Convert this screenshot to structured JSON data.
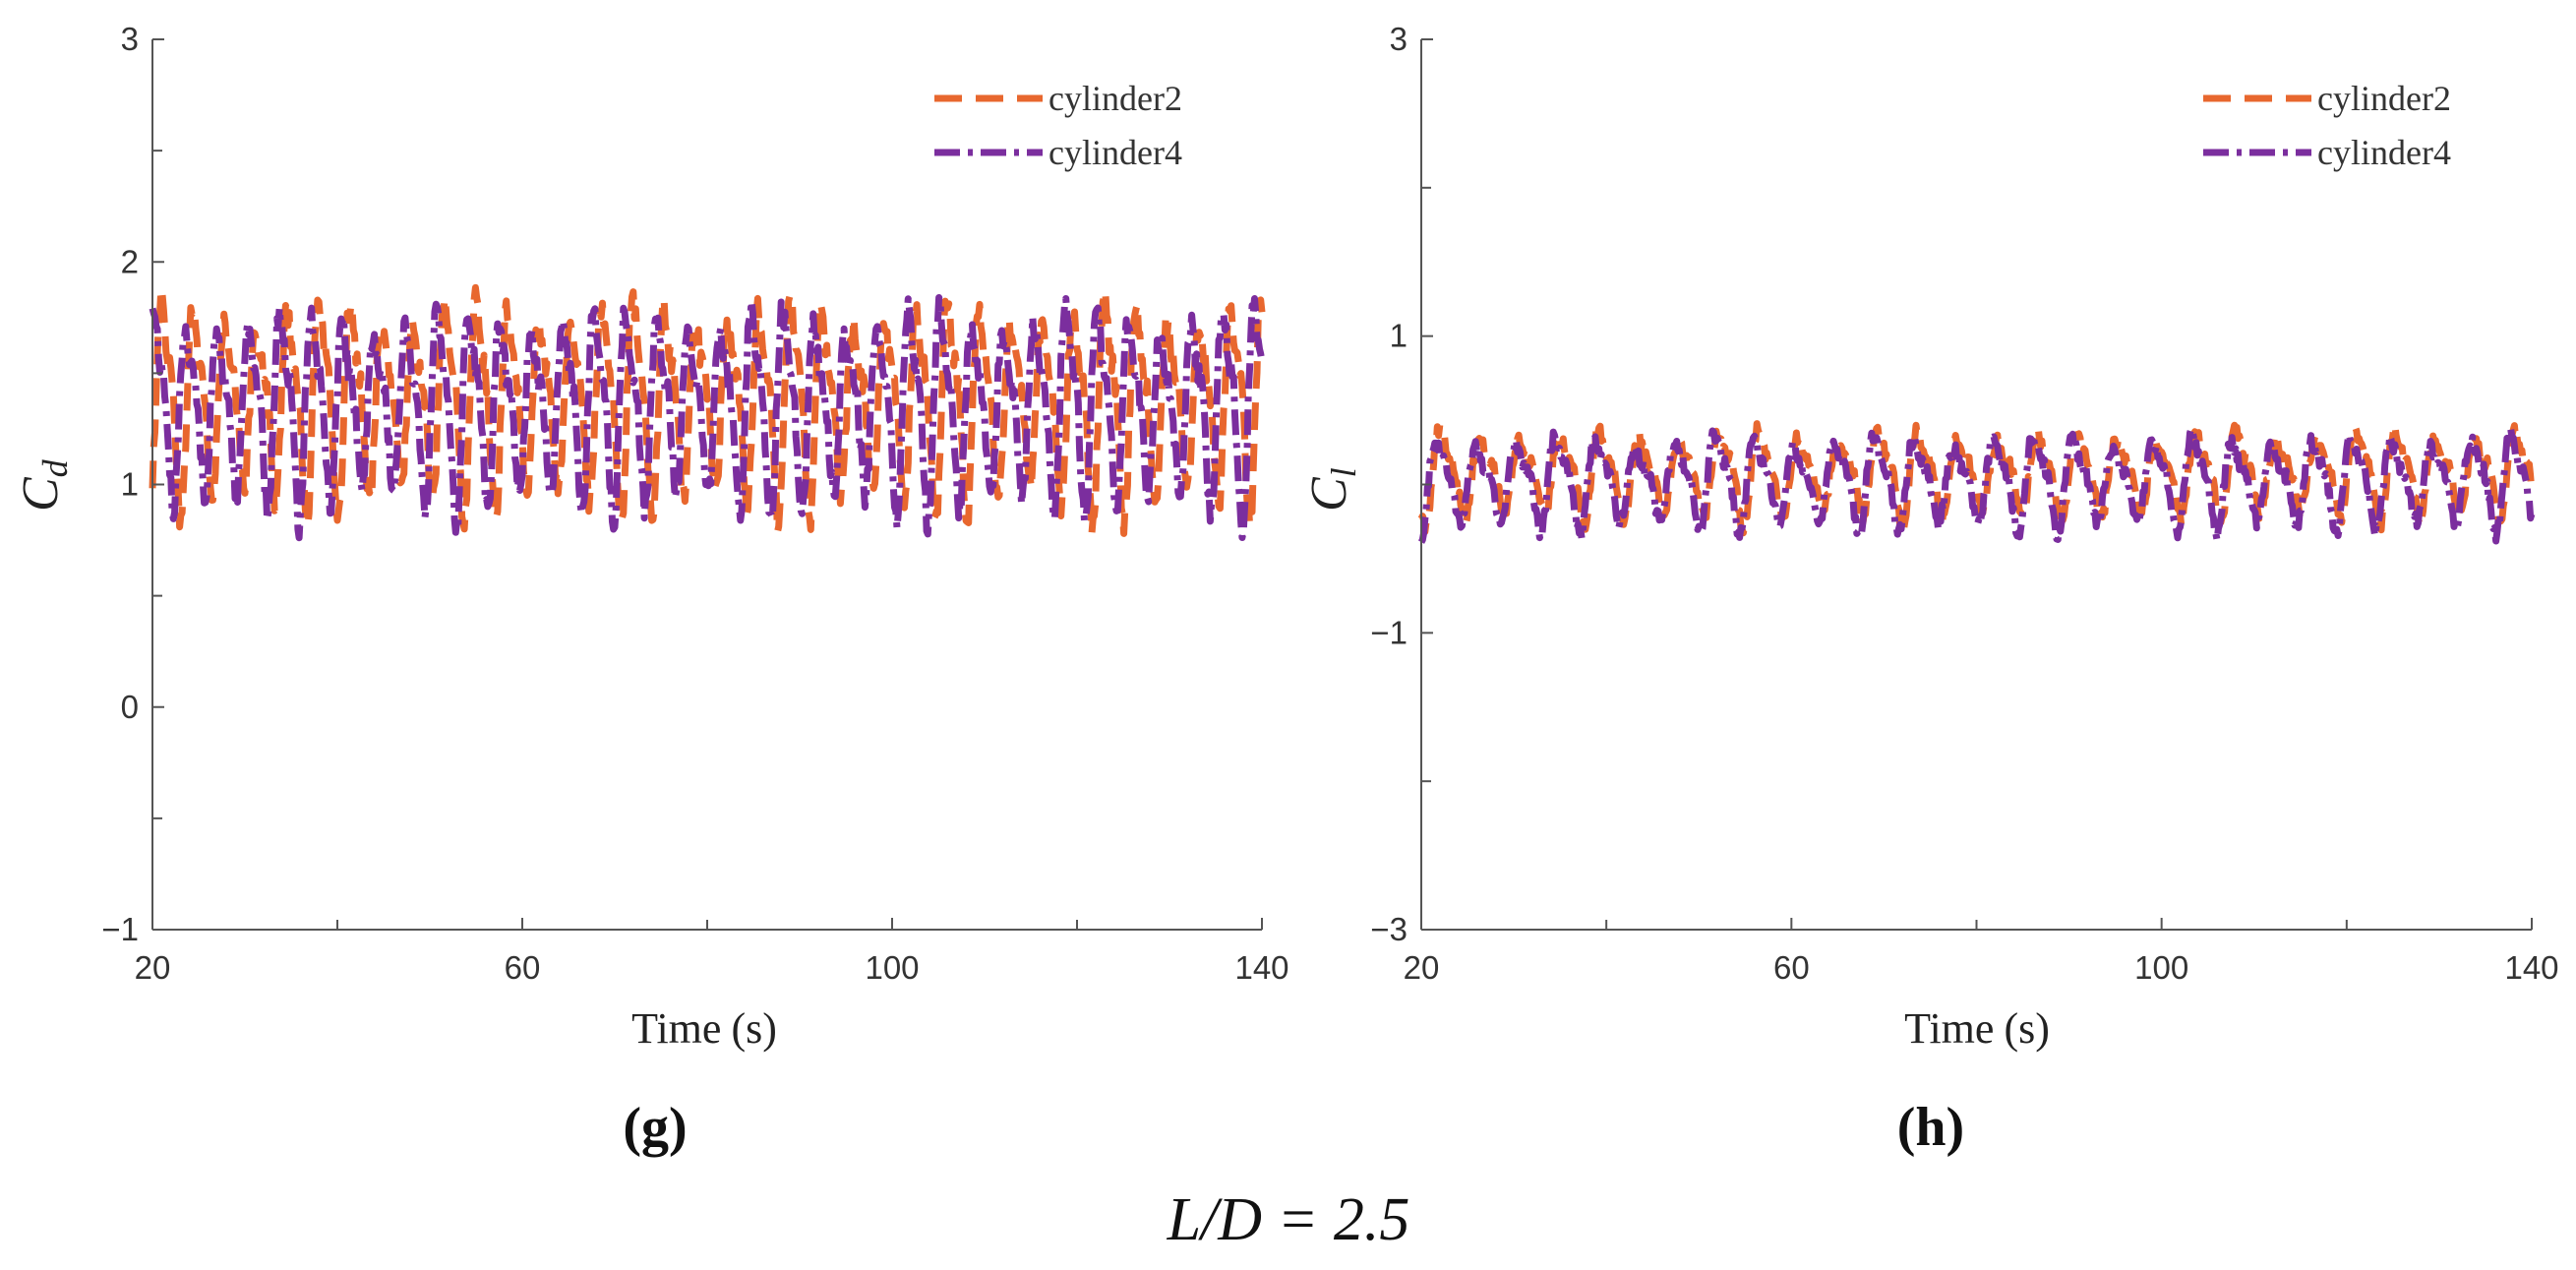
{
  "caption": "L/D = 2.5",
  "colors": {
    "cylinder2": "#E8672E",
    "cylinder4": "#7B2E9E"
  },
  "chart_data": [
    {
      "type": "line",
      "panel": "(g)",
      "xlabel": "Time (s)",
      "xlabel_main": "Time",
      "xlabel_unit": "(s)",
      "ylabel": "Cd",
      "ylabel_main": "C",
      "ylabel_sub": "d",
      "xlim": [
        20,
        140
      ],
      "ylim": [
        -1,
        3
      ],
      "xticks": [
        20,
        60,
        100,
        140
      ],
      "xtick_labels": [
        "20",
        "60",
        "100",
        "140"
      ],
      "yticks": [
        -1,
        0,
        1,
        2,
        3
      ],
      "ytick_labels": [
        "−1",
        "0",
        "1",
        "2",
        "3"
      ],
      "grid": false,
      "legend_position": "top-right",
      "series": [
        {
          "name": "cylinder2",
          "style": "dashed",
          "mean": 1.38,
          "amplitude": 0.6,
          "period": 3.4,
          "phase": 0.0,
          "noise": 0.06
        },
        {
          "name": "cylinder4",
          "style": "dash-dot",
          "mean": 1.36,
          "amplitude": 0.58,
          "period": 3.4,
          "phase": 1.5,
          "noise": 0.06
        }
      ]
    },
    {
      "type": "line",
      "panel": "(h)",
      "xlabel": "Time (s)",
      "xlabel_main": "Time",
      "xlabel_unit": "(s)",
      "ylabel": "Cl",
      "ylabel_main": "C",
      "ylabel_sub": "l",
      "xlim": [
        20,
        140
      ],
      "ylim": [
        -3,
        3
      ],
      "xticks": [
        20,
        60,
        100,
        140
      ],
      "xtick_labels": [
        "20",
        "60",
        "100",
        "140"
      ],
      "yticks": [
        -3,
        -1,
        1,
        3
      ],
      "ytick_labels": [
        "−3",
        "−1",
        "1",
        "3"
      ],
      "grid": false,
      "legend_position": "top-right",
      "series": [
        {
          "name": "cylinder2",
          "style": "dashed",
          "mean": 0.08,
          "amplitude": 0.38,
          "period": 4.3,
          "phase": 0.3,
          "noise": 0.05
        },
        {
          "name": "cylinder4",
          "style": "dash-dot",
          "mean": 0.03,
          "amplitude": 0.4,
          "period": 4.3,
          "phase": 0.9,
          "noise": 0.05
        }
      ]
    }
  ]
}
